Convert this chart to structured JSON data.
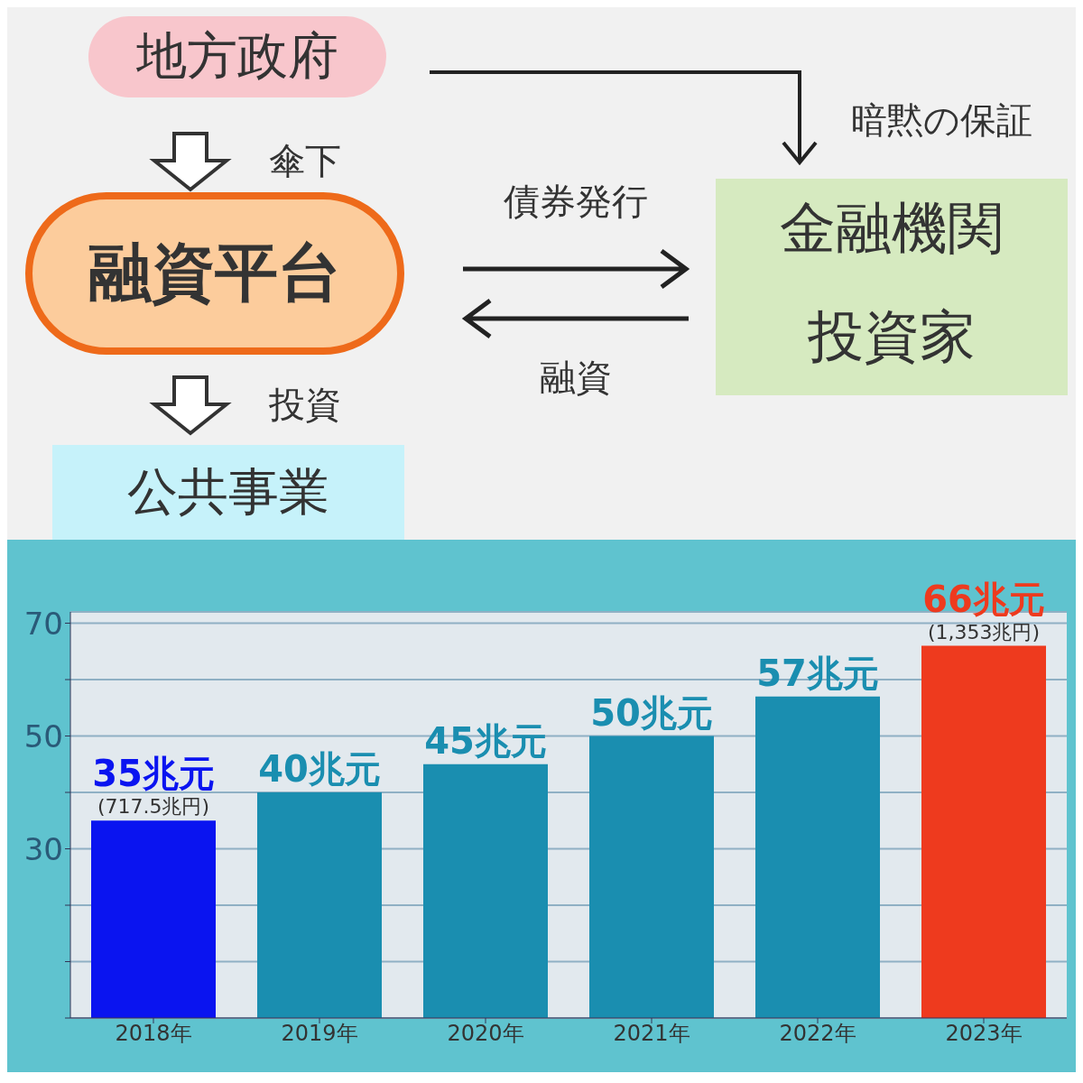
{
  "chart_data": [
    {
      "type": "other",
      "annotations": [
        "地方政府",
        "傘下",
        "融資平台",
        "投資",
        "公共事業",
        "暗黙の保証",
        "債券発行",
        "融資",
        "金融機関",
        "投資家"
      ]
    },
    {
      "type": "bar",
      "categories": [
        "2018年",
        "2019年",
        "2020年",
        "2021年",
        "2022年",
        "2023年"
      ],
      "values": [
        35,
        40,
        45,
        50,
        57,
        66
      ],
      "colors": [
        "#0a14f0",
        "#1a8eb0",
        "#1a8eb0",
        "#1a8eb0",
        "#1a8eb0",
        "#ee3a1e"
      ],
      "value_labels": [
        "35兆元",
        "40兆元",
        "45兆元",
        "50兆元",
        "57兆元",
        "66兆元"
      ],
      "annotations": [
        {
          "text": "(717.5兆円)",
          "x": "2018年",
          "y": 35
        },
        {
          "text": "(1,353兆円)",
          "x": "2023年",
          "y": 66
        }
      ],
      "ylim": [
        0,
        72
      ],
      "yticks": [
        {
          "value": 0,
          "label": null
        },
        {
          "value": 10,
          "label": null
        },
        {
          "value": 20,
          "label": null
        },
        30,
        {
          "value": 40,
          "label": null
        },
        50,
        {
          "value": 60,
          "label": null
        },
        70
      ],
      "grid": "y"
    }
  ]
}
